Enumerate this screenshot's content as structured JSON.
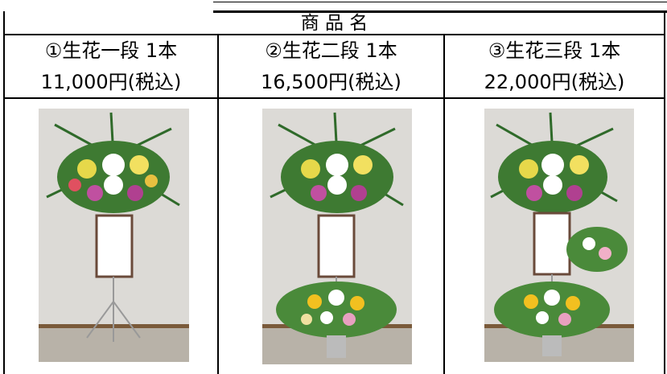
{
  "header": {
    "title": "商 品 名"
  },
  "products": [
    {
      "name": "①生花一段 1本",
      "price": "11,000円(税込)"
    },
    {
      "name": "②生花二段 1本",
      "price": "16,500円(税込)"
    },
    {
      "name": "③生花三段 1本",
      "price": "22,000円(税込)"
    }
  ]
}
